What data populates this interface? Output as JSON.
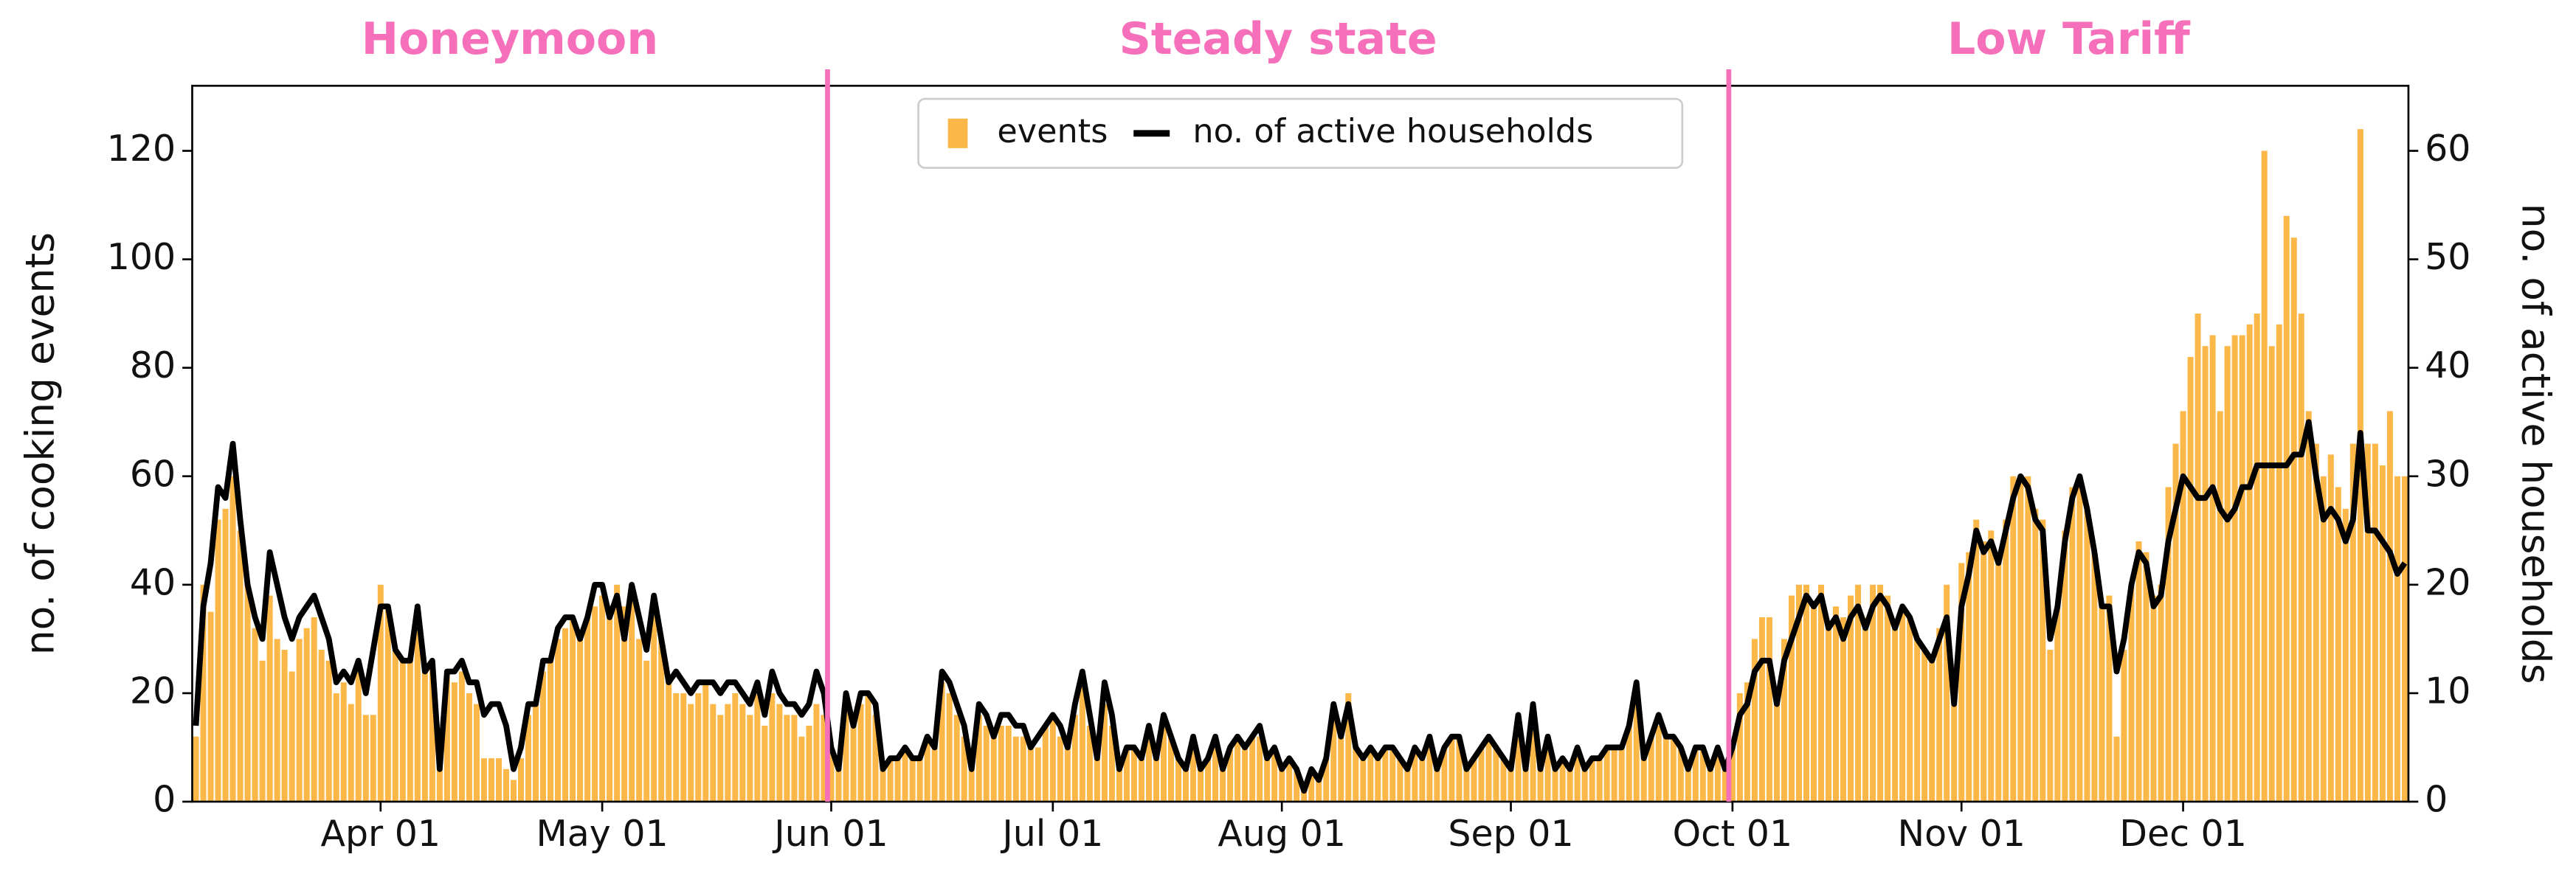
{
  "chart_data": {
    "type": "bar_line",
    "phases": [
      "Honeymoon",
      "Steady state",
      "Low Tariff"
    ],
    "phase_color": "#f56fba",
    "vlines": [
      "Jun 01",
      "Oct 01"
    ],
    "ylabel": "no. of cooking events",
    "y2label": "no. of active households",
    "ylim": [
      0,
      132
    ],
    "yticks": [
      0,
      20,
      40,
      60,
      80,
      100,
      120
    ],
    "y2lim": [
      0,
      66
    ],
    "y2ticks": [
      0,
      10,
      20,
      30,
      40,
      50,
      60
    ],
    "legend": "upper center",
    "categories": [
      null,
      null,
      null,
      null,
      null,
      null,
      null,
      null,
      null,
      null,
      null,
      null,
      null,
      null,
      null,
      null,
      null,
      null,
      null,
      null,
      null,
      null,
      null,
      null,
      null,
      "Apr 01",
      null,
      null,
      null,
      null,
      null,
      null,
      null,
      null,
      null,
      null,
      null,
      null,
      null,
      null,
      null,
      null,
      null,
      null,
      null,
      null,
      null,
      null,
      null,
      null,
      null,
      null,
      null,
      null,
      null,
      "May 01",
      null,
      null,
      null,
      null,
      null,
      null,
      null,
      null,
      null,
      null,
      null,
      null,
      null,
      null,
      null,
      null,
      null,
      null,
      null,
      null,
      null,
      null,
      null,
      null,
      null,
      null,
      null,
      null,
      null,
      null,
      "Jun 01",
      null,
      null,
      null,
      null,
      null,
      null,
      null,
      null,
      null,
      null,
      null,
      null,
      null,
      null,
      null,
      null,
      null,
      null,
      null,
      null,
      null,
      null,
      null,
      null,
      null,
      null,
      null,
      null,
      null,
      "Jul 01",
      null,
      null,
      null,
      null,
      null,
      null,
      null,
      null,
      null,
      null,
      null,
      null,
      null,
      null,
      null,
      null,
      null,
      null,
      null,
      null,
      null,
      null,
      null,
      null,
      null,
      null,
      null,
      null,
      null,
      null,
      "Aug 01",
      null,
      null,
      null,
      null,
      null,
      null,
      null,
      null,
      null,
      null,
      null,
      null,
      null,
      null,
      null,
      null,
      null,
      null,
      null,
      null,
      null,
      null,
      null,
      null,
      null,
      null,
      null,
      null,
      null,
      null,
      "Sep 01",
      null,
      null,
      null,
      null,
      null,
      null,
      null,
      null,
      null,
      null,
      null,
      null,
      null,
      null,
      null,
      null,
      null,
      null,
      null,
      null,
      null,
      null,
      null,
      null,
      null,
      null,
      null,
      null,
      null,
      "Oct 01",
      null,
      null,
      null,
      null,
      null,
      null,
      null,
      null,
      null,
      null,
      null,
      null,
      null,
      null,
      null,
      null,
      null,
      null,
      null,
      null,
      null,
      null,
      null,
      null,
      null,
      null,
      null,
      null,
      null,
      null,
      "Nov 01",
      null,
      null,
      null,
      null,
      null,
      null,
      null,
      null,
      null,
      null,
      null,
      null,
      null,
      null,
      null,
      null,
      null,
      null,
      null,
      null,
      null,
      null,
      null,
      null,
      null,
      null,
      null,
      null,
      null,
      "Dec 01",
      null,
      null,
      null,
      null,
      null,
      null,
      null,
      null,
      null,
      null,
      null,
      null,
      null,
      null,
      null,
      null,
      null,
      null,
      null,
      null,
      null,
      null,
      null,
      null,
      null,
      null,
      null,
      null,
      null,
      null
    ],
    "series": [
      {
        "name": "events",
        "type": "bar",
        "color": "#fbb848",
        "values": [
          12,
          40,
          35,
          52,
          54,
          60,
          50,
          40,
          32,
          26,
          38,
          30,
          28,
          24,
          30,
          32,
          34,
          28,
          26,
          20,
          22,
          18,
          24,
          16,
          16,
          40,
          36,
          28,
          26,
          26,
          32,
          24,
          26,
          8,
          24,
          22,
          24,
          20,
          18,
          8,
          8,
          8,
          6,
          4,
          8,
          16,
          18,
          24,
          26,
          30,
          32,
          34,
          30,
          34,
          36,
          38,
          34,
          40,
          36,
          38,
          30,
          26,
          36,
          30,
          22,
          20,
          20,
          18,
          20,
          22,
          18,
          16,
          18,
          20,
          18,
          16,
          20,
          14,
          20,
          18,
          16,
          16,
          12,
          14,
          18,
          16,
          10,
          6,
          18,
          14,
          18,
          20,
          16,
          6,
          8,
          8,
          10,
          8,
          8,
          12,
          10,
          22,
          20,
          16,
          12,
          6,
          16,
          14,
          12,
          14,
          14,
          12,
          12,
          10,
          10,
          14,
          16,
          12,
          10,
          16,
          22,
          14,
          8,
          18,
          14,
          6,
          10,
          10,
          8,
          12,
          8,
          14,
          12,
          8,
          6,
          12,
          6,
          8,
          12,
          6,
          10,
          12,
          10,
          12,
          12,
          8,
          10,
          6,
          8,
          6,
          2,
          6,
          4,
          8,
          18,
          12,
          20,
          10,
          8,
          10,
          8,
          10,
          10,
          8,
          6,
          10,
          8,
          12,
          6,
          10,
          12,
          12,
          6,
          8,
          10,
          12,
          10,
          8,
          6,
          14,
          6,
          18,
          6,
          12,
          6,
          8,
          6,
          10,
          6,
          8,
          8,
          10,
          10,
          10,
          14,
          20,
          8,
          12,
          14,
          12,
          12,
          10,
          6,
          10,
          10,
          6,
          10,
          6,
          10,
          20,
          22,
          30,
          34,
          34,
          20,
          30,
          38,
          40,
          40,
          36,
          40,
          32,
          36,
          34,
          38,
          40,
          34,
          40,
          40,
          38,
          32,
          36,
          34,
          30,
          28,
          26,
          32,
          40,
          18,
          44,
          46,
          52,
          48,
          50,
          46,
          52,
          60,
          60,
          60,
          54,
          52,
          28,
          36,
          50,
          58,
          60,
          54,
          46,
          36,
          38,
          12,
          28,
          40,
          48,
          46,
          38,
          40,
          58,
          66,
          72,
          82,
          90,
          84,
          86,
          72,
          84,
          86,
          86,
          88,
          90,
          120,
          84,
          88,
          108,
          104,
          90,
          72,
          66,
          60,
          64,
          58,
          54,
          66,
          124,
          66,
          66,
          62,
          72,
          60,
          60
        ]
      },
      {
        "name": "no. of active households",
        "type": "line",
        "axis": "y2",
        "color": "#000000",
        "values": [
          7,
          18,
          22,
          29,
          28,
          33,
          26,
          20,
          17,
          15,
          23,
          20,
          17,
          15,
          17,
          18,
          19,
          17,
          15,
          11,
          12,
          11,
          13,
          10,
          14,
          18,
          18,
          14,
          13,
          13,
          18,
          12,
          13,
          3,
          12,
          12,
          13,
          11,
          11,
          8,
          9,
          9,
          7,
          3,
          5,
          9,
          9,
          13,
          13,
          16,
          17,
          17,
          15,
          17,
          20,
          20,
          17,
          19,
          15,
          20,
          17,
          14,
          19,
          15,
          11,
          12,
          11,
          10,
          11,
          11,
          11,
          10,
          11,
          11,
          10,
          9,
          11,
          8,
          12,
          10,
          9,
          9,
          8,
          9,
          12,
          10,
          5,
          3,
          10,
          7,
          10,
          10,
          9,
          3,
          4,
          4,
          5,
          4,
          4,
          6,
          5,
          12,
          11,
          9,
          7,
          3,
          9,
          8,
          6,
          8,
          8,
          7,
          7,
          5,
          6,
          7,
          8,
          7,
          5,
          9,
          12,
          8,
          4,
          11,
          8,
          3,
          5,
          5,
          4,
          7,
          4,
          8,
          6,
          4,
          3,
          6,
          3,
          4,
          6,
          3,
          5,
          6,
          5,
          6,
          7,
          4,
          5,
          3,
          4,
          3,
          1,
          3,
          2,
          4,
          9,
          6,
          9,
          5,
          4,
          5,
          4,
          5,
          5,
          4,
          3,
          5,
          4,
          6,
          3,
          5,
          6,
          6,
          3,
          4,
          5,
          6,
          5,
          4,
          3,
          8,
          3,
          9,
          3,
          6,
          3,
          4,
          3,
          5,
          3,
          4,
          4,
          5,
          5,
          5,
          7,
          11,
          4,
          6,
          8,
          6,
          6,
          5,
          3,
          5,
          5,
          3,
          5,
          3,
          5,
          8,
          9,
          12,
          13,
          13,
          9,
          13,
          15,
          17,
          19,
          18,
          19,
          16,
          17,
          15,
          17,
          18,
          16,
          18,
          19,
          18,
          16,
          18,
          17,
          15,
          14,
          13,
          15,
          17,
          9,
          18,
          21,
          25,
          23,
          24,
          22,
          25,
          28,
          30,
          29,
          26,
          25,
          15,
          18,
          24,
          28,
          30,
          27,
          23,
          18,
          18,
          12,
          15,
          20,
          23,
          22,
          18,
          19,
          24,
          27,
          30,
          29,
          28,
          28,
          29,
          27,
          26,
          27,
          29,
          29,
          31,
          31,
          31,
          31,
          31,
          32,
          32,
          35,
          30,
          26,
          27,
          26,
          24,
          26,
          34,
          25,
          25,
          24,
          23,
          21,
          22
        ]
      }
    ]
  }
}
